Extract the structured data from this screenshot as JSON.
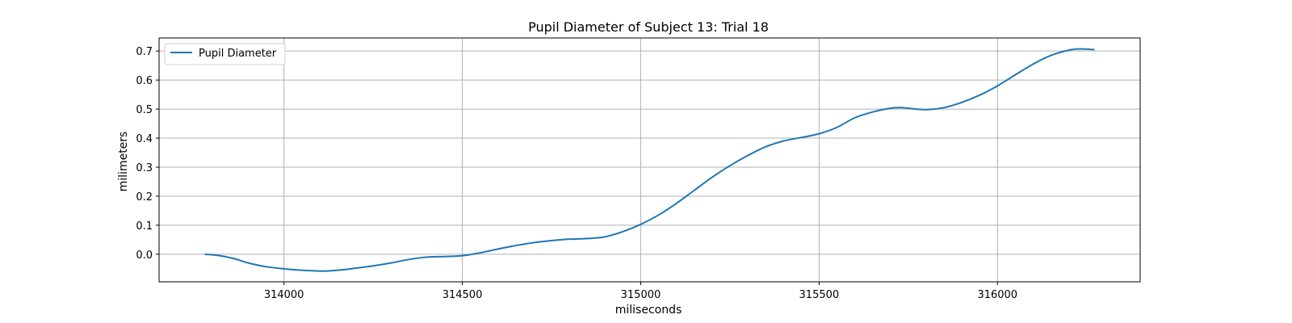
{
  "chart_data": {
    "type": "line",
    "title": "Pupil Diameter of Subject 13: Trial 18",
    "xlabel": "miliseconds",
    "ylabel": "milimeters",
    "xlim": [
      313650,
      316400
    ],
    "ylim": [
      -0.095,
      0.745
    ],
    "xticks": [
      314000,
      314500,
      315000,
      315500,
      316000
    ],
    "xtick_labels": [
      "314000",
      "314500",
      "315000",
      "315500",
      "316000"
    ],
    "yticks": [
      0.0,
      0.1,
      0.2,
      0.3,
      0.4,
      0.5,
      0.6,
      0.7
    ],
    "ytick_labels": [
      "0.0",
      "0.1",
      "0.2",
      "0.3",
      "0.4",
      "0.5",
      "0.6",
      "0.7"
    ],
    "grid": true,
    "legend_position": "top-left",
    "series": [
      {
        "name": "Pupil Diameter",
        "color": "#1f77b4",
        "x": [
          313780,
          313820,
          313860,
          313900,
          313950,
          314000,
          314050,
          314110,
          314160,
          314200,
          314250,
          314300,
          314350,
          314400,
          314450,
          314500,
          314550,
          314600,
          314650,
          314700,
          314750,
          314800,
          314850,
          314900,
          314950,
          315000,
          315050,
          315100,
          315150,
          315200,
          315250,
          315300,
          315350,
          315400,
          315450,
          315500,
          315550,
          315600,
          315650,
          315700,
          315730,
          315750,
          315800,
          315850,
          315900,
          315950,
          316000,
          316050,
          316100,
          316150,
          316200,
          316230,
          316270
        ],
        "y": [
          0.0,
          -0.005,
          -0.015,
          -0.03,
          -0.043,
          -0.05,
          -0.055,
          -0.058,
          -0.054,
          -0.048,
          -0.04,
          -0.03,
          -0.018,
          -0.01,
          -0.008,
          -0.005,
          0.005,
          0.018,
          0.03,
          0.04,
          0.047,
          0.052,
          0.054,
          0.06,
          0.078,
          0.103,
          0.135,
          0.175,
          0.22,
          0.265,
          0.305,
          0.34,
          0.37,
          0.39,
          0.402,
          0.415,
          0.437,
          0.47,
          0.49,
          0.503,
          0.505,
          0.503,
          0.498,
          0.505,
          0.523,
          0.548,
          0.58,
          0.618,
          0.655,
          0.685,
          0.703,
          0.707,
          0.705
        ]
      }
    ]
  }
}
